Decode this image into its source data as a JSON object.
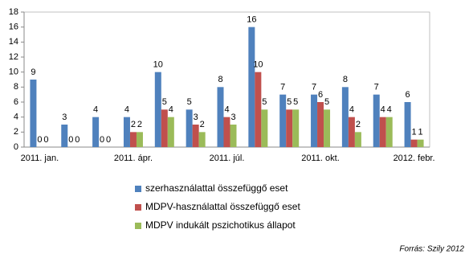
{
  "chart_data": {
    "type": "bar",
    "categories": [
      "2011. jan.",
      null,
      null,
      "2011. ápr.",
      null,
      null,
      "2011. júl.",
      null,
      null,
      "2011. okt.",
      null,
      null,
      "2012. febr."
    ],
    "series": [
      {
        "name": "szerhasználattal összefüggő eset",
        "color": "#4f81bd",
        "values": [
          9,
          3,
          4,
          4,
          10,
          5,
          8,
          16,
          7,
          7,
          8,
          7,
          6
        ]
      },
      {
        "name": "MDPV-használattal összefüggő eset",
        "color": "#c0504d",
        "values": [
          0,
          0,
          0,
          2,
          5,
          3,
          4,
          10,
          5,
          6,
          4,
          4,
          1
        ]
      },
      {
        "name": "MDPV indukált pszichotikus állapot",
        "color": "#9bbb59",
        "values": [
          0,
          0,
          0,
          2,
          4,
          2,
          3,
          5,
          5,
          5,
          2,
          4,
          1
        ]
      }
    ],
    "ylim": [
      0,
      18
    ],
    "yticks": [
      0,
      2,
      4,
      6,
      8,
      10,
      12,
      14,
      16,
      18
    ],
    "grid": false,
    "legend": "bottom",
    "source": "Forrás: Szily 2012"
  }
}
